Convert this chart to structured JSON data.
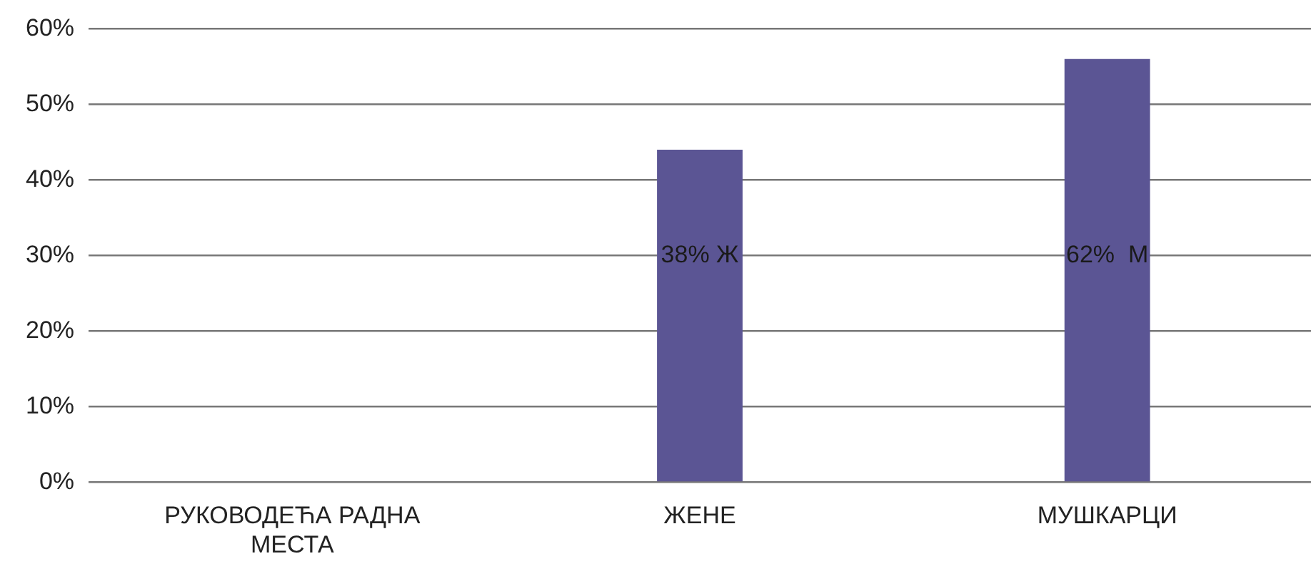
{
  "chart_data": {
    "type": "bar",
    "categories": [
      "РУКОВОДЕЋА РАДНА МЕСТА",
      "ЖЕНЕ",
      "МУШКАРЦИ"
    ],
    "values": [
      null,
      44,
      56
    ],
    "color": "#5b5594",
    "ylim": [
      0,
      60
    ],
    "yticks": [
      {
        "value": 0,
        "label": "0%"
      },
      {
        "value": 10,
        "label": "10%"
      },
      {
        "value": 20,
        "label": "20%"
      },
      {
        "value": 30,
        "label": "30%"
      },
      {
        "value": 40,
        "label": "40%"
      },
      {
        "value": 50,
        "label": "50%"
      },
      {
        "value": 60,
        "label": "60%"
      }
    ],
    "grid": "y",
    "legend": false,
    "annotations": [
      "38% Ж",
      "62%  М"
    ]
  }
}
